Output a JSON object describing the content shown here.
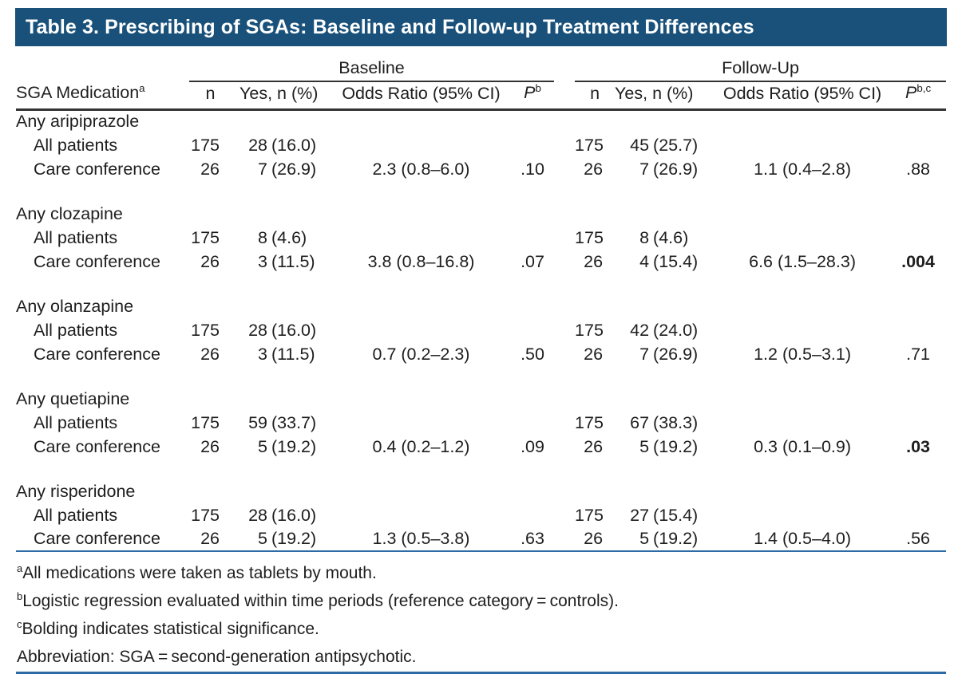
{
  "title": "Table 3. Prescribing of SGAs: Baseline and Follow-up Treatment Differences",
  "header": {
    "row_label": "SGA Medication",
    "row_label_sup": "a",
    "baseline": {
      "label": "Baseline",
      "n": "n",
      "yes": "Yes, n (%)",
      "or": "Odds Ratio (95% CI)",
      "p": "P",
      "p_sup": "b"
    },
    "followup": {
      "label": "Follow-Up",
      "n": "n",
      "yes": "Yes, n (%)",
      "or": "Odds Ratio (95% CI)",
      "p": "P",
      "p_sup": "b,c"
    }
  },
  "rows": [
    {
      "drug": "Any aripiprazole",
      "sub": [
        {
          "label": "All patients",
          "b_n": "175",
          "b_yes_n": "28",
          "b_yes_pct": "(16.0)",
          "b_or": "",
          "b_p": "",
          "f_n": "175",
          "f_yes_n": "45",
          "f_yes_pct": "(25.7)",
          "f_or": "",
          "f_p": ""
        },
        {
          "label": "Care conference",
          "b_n": "26",
          "b_yes_n": "7",
          "b_yes_pct": "(26.9)",
          "b_or": "2.3 (0.8–6.0)",
          "b_p": ".10",
          "f_n": "26",
          "f_yes_n": "7",
          "f_yes_pct": "(26.9)",
          "f_or": "1.1 (0.4–2.8)",
          "f_p": ".88"
        }
      ]
    },
    {
      "drug": "Any clozapine",
      "sub": [
        {
          "label": "All patients",
          "b_n": "175",
          "b_yes_n": "8",
          "b_yes_pct": "(4.6)",
          "b_or": "",
          "b_p": "",
          "f_n": "175",
          "f_yes_n": "8",
          "f_yes_pct": "(4.6)",
          "f_or": "",
          "f_p": ""
        },
        {
          "label": "Care conference",
          "b_n": "26",
          "b_yes_n": "3",
          "b_yes_pct": "(11.5)",
          "b_or": "3.8 (0.8–16.8)",
          "b_p": ".07",
          "f_n": "26",
          "f_yes_n": "4",
          "f_yes_pct": "(15.4)",
          "f_or": "6.6 (1.5–28.3)",
          "f_p": ".004"
        }
      ]
    },
    {
      "drug": "Any olanzapine",
      "sub": [
        {
          "label": "All patients",
          "b_n": "175",
          "b_yes_n": "28",
          "b_yes_pct": "(16.0)",
          "b_or": "",
          "b_p": "",
          "f_n": "175",
          "f_yes_n": "42",
          "f_yes_pct": "(24.0)",
          "f_or": "",
          "f_p": ""
        },
        {
          "label": "Care conference",
          "b_n": "26",
          "b_yes_n": "3",
          "b_yes_pct": "(11.5)",
          "b_or": "0.7 (0.2–2.3)",
          "b_p": ".50",
          "f_n": "26",
          "f_yes_n": "7",
          "f_yes_pct": "(26.9)",
          "f_or": "1.2 (0.5–3.1)",
          "f_p": ".71"
        }
      ]
    },
    {
      "drug": "Any quetiapine",
      "sub": [
        {
          "label": "All patients",
          "b_n": "175",
          "b_yes_n": "59",
          "b_yes_pct": "(33.7)",
          "b_or": "",
          "b_p": "",
          "f_n": "175",
          "f_yes_n": "67",
          "f_yes_pct": "(38.3)",
          "f_or": "",
          "f_p": ""
        },
        {
          "label": "Care conference",
          "b_n": "26",
          "b_yes_n": "5",
          "b_yes_pct": "(19.2)",
          "b_or": "0.4 (0.2–1.2)",
          "b_p": ".09",
          "f_n": "26",
          "f_yes_n": "5",
          "f_yes_pct": "(19.2)",
          "f_or": "0.3 (0.1–0.9)",
          "f_p": ".03"
        }
      ]
    },
    {
      "drug": "Any risperidone",
      "sub": [
        {
          "label": "All patients",
          "b_n": "175",
          "b_yes_n": "28",
          "b_yes_pct": "(16.0)",
          "b_or": "",
          "b_p": "",
          "f_n": "175",
          "f_yes_n": "27",
          "f_yes_pct": "(15.4)",
          "f_or": "",
          "f_p": ""
        },
        {
          "label": "Care conference",
          "b_n": "26",
          "b_yes_n": "5",
          "b_yes_pct": "(19.2)",
          "b_or": "1.3 (0.5–3.8)",
          "b_p": ".63",
          "f_n": "26",
          "f_yes_n": "5",
          "f_yes_pct": "(19.2)",
          "f_or": "1.4 (0.5–4.0)",
          "f_p": ".56"
        }
      ]
    }
  ],
  "footnotes": [
    {
      "sup": "a",
      "text": "All medications were taken as tablets by mouth."
    },
    {
      "sup": "b",
      "text": "Logistic regression evaluated within time periods (reference category = controls)."
    },
    {
      "sup": "c",
      "text": "Bolding indicates statistical significance."
    },
    {
      "sup": "",
      "text": "Abbreviation: SGA = second-generation antipsychotic."
    }
  ],
  "colors": {
    "title_bar_bg": "#19517A",
    "rule_blue": "#2B6AA5",
    "rule_dark": "#333333"
  }
}
